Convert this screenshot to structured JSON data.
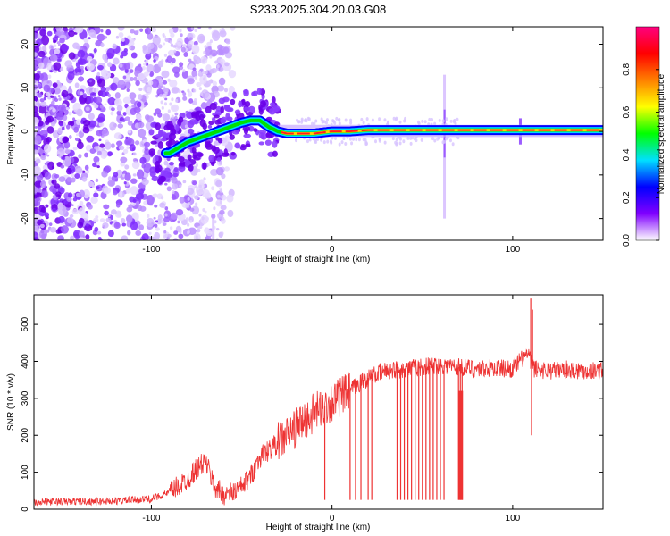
{
  "figure": {
    "title": "S233.2025.304.20.03.G08"
  },
  "chart_data": [
    {
      "type": "heatmap",
      "xlabel": "Height of straight line (km)",
      "ylabel": "Frequency (Hz)",
      "xlim": [
        -165,
        150
      ],
      "ylim": [
        -25,
        24
      ],
      "xticks": [
        -100,
        0,
        100
      ],
      "yticks": [
        -20,
        -10,
        0,
        10,
        20
      ],
      "ridge_x": [
        -90,
        -80,
        -70,
        -60,
        -50,
        -45,
        -40,
        -35,
        -30,
        -25,
        -20,
        -10,
        0,
        10,
        20,
        60,
        100,
        150
      ],
      "ridge_freq": [
        -5,
        -2.5,
        -1,
        0.5,
        2,
        2.5,
        2.5,
        1,
        0,
        -0.5,
        -0.5,
        -0.5,
        0,
        0,
        0.3,
        0.3,
        0.3,
        0.3
      ],
      "colorbar": {
        "label": "Normalized spectral amplitude",
        "range": [
          0,
          1
        ],
        "ticks": [
          "0.0",
          "0.2",
          "0.4",
          "0.6",
          "0.8"
        ],
        "ticks_values": [
          0.0,
          0.2,
          0.4,
          0.6,
          0.8
        ],
        "colors": [
          "#ffffff",
          "#8000ff",
          "#0000ff",
          "#00e0ff",
          "#00ff00",
          "#ffff00",
          "#ff8000",
          "#ff0000",
          "#ff0080"
        ]
      }
    },
    {
      "type": "line",
      "xlabel": "Height of straight line (km)",
      "ylabel": "SNR (10 * v/v)",
      "xlim": [
        -165,
        150
      ],
      "ylim": [
        0,
        580
      ],
      "xticks": [
        -100,
        0,
        100
      ],
      "yticks": [
        0,
        100,
        200,
        300,
        400,
        500
      ],
      "series_color": "#ee3333",
      "trend_x": [
        -165,
        -120,
        -100,
        -90,
        -80,
        -75,
        -70,
        -65,
        -60,
        -55,
        -50,
        -45,
        -40,
        -35,
        -30,
        -25,
        -20,
        -15,
        -10,
        -5,
        0,
        5,
        10,
        15,
        20,
        25,
        30,
        40,
        50,
        60,
        70,
        80,
        90,
        100,
        108,
        112,
        120,
        130,
        140,
        150
      ],
      "trend_y": [
        20,
        22,
        28,
        45,
        80,
        110,
        130,
        60,
        40,
        45,
        60,
        90,
        140,
        160,
        180,
        200,
        220,
        240,
        260,
        275,
        290,
        305,
        320,
        340,
        355,
        365,
        375,
        380,
        385,
        390,
        385,
        380,
        382,
        380,
        420,
        380,
        375,
        378,
        375,
        375
      ],
      "dropouts_x": [
        -4,
        10,
        13,
        16,
        20,
        22,
        36,
        38,
        40,
        42,
        44,
        46,
        48,
        50,
        52,
        54,
        56,
        58,
        60,
        62,
        70,
        71,
        72
      ],
      "dropout_y": 25,
      "spike_x": [
        110,
        111
      ],
      "spike_y": [
        570,
        540
      ],
      "dip_x": 110.5,
      "dip_y": 200
    }
  ]
}
